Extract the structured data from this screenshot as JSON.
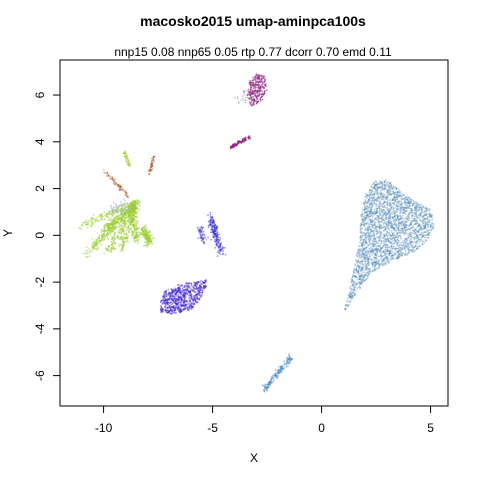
{
  "chart_data": {
    "type": "scatter",
    "title": "macosko2015 umap-aminpca100s",
    "subtitle": "nnp15 0.08 nnp65 0.05 rtp 0.77 dcorr 0.70 emd 0.11",
    "xlabel": "X",
    "ylabel": "Y",
    "xlim": [
      -12,
      5.8
    ],
    "ylim": [
      -7.3,
      7.5
    ],
    "xticks": [
      -10,
      -5,
      0,
      5
    ],
    "yticks": [
      -6,
      -4,
      -2,
      0,
      2,
      4,
      6
    ],
    "grid": false,
    "colors": {
      "large_cluster": "#4682b4",
      "small_cluster": "#4a8ac0",
      "purple_blob": "#3a1fd0",
      "blue_strip": "#3328d8",
      "fan": "#9acd32",
      "magenta": "#8b1a7a",
      "brown": "#b05a2a"
    },
    "clusters": [
      {
        "name": "large",
        "color_key": "large_cluster",
        "cx": 3.0,
        "cy": 0.3,
        "extent": "x 1.0-5.2, y -3.4-2.4"
      },
      {
        "name": "small",
        "color_key": "small_cluster",
        "cx": -2.0,
        "cy": -5.9,
        "extent": "x -2.6 to -1.4, y -6.6 to -5.2"
      },
      {
        "name": "purple blob",
        "color_key": "purple_blob",
        "cx": -6.3,
        "cy": -2.8
      },
      {
        "name": "blue strip",
        "color_key": "blue_strip",
        "cx": -5.2,
        "cy": 0.0
      },
      {
        "name": "fan",
        "color_key": "fan",
        "cx": -9.5,
        "cy": 0.2
      },
      {
        "name": "magenta top",
        "color_key": "magenta",
        "cx": -3.0,
        "cy": 6.2
      },
      {
        "name": "magenta streak",
        "color_key": "magenta",
        "cx": -3.8,
        "cy": 4.0
      }
    ]
  }
}
